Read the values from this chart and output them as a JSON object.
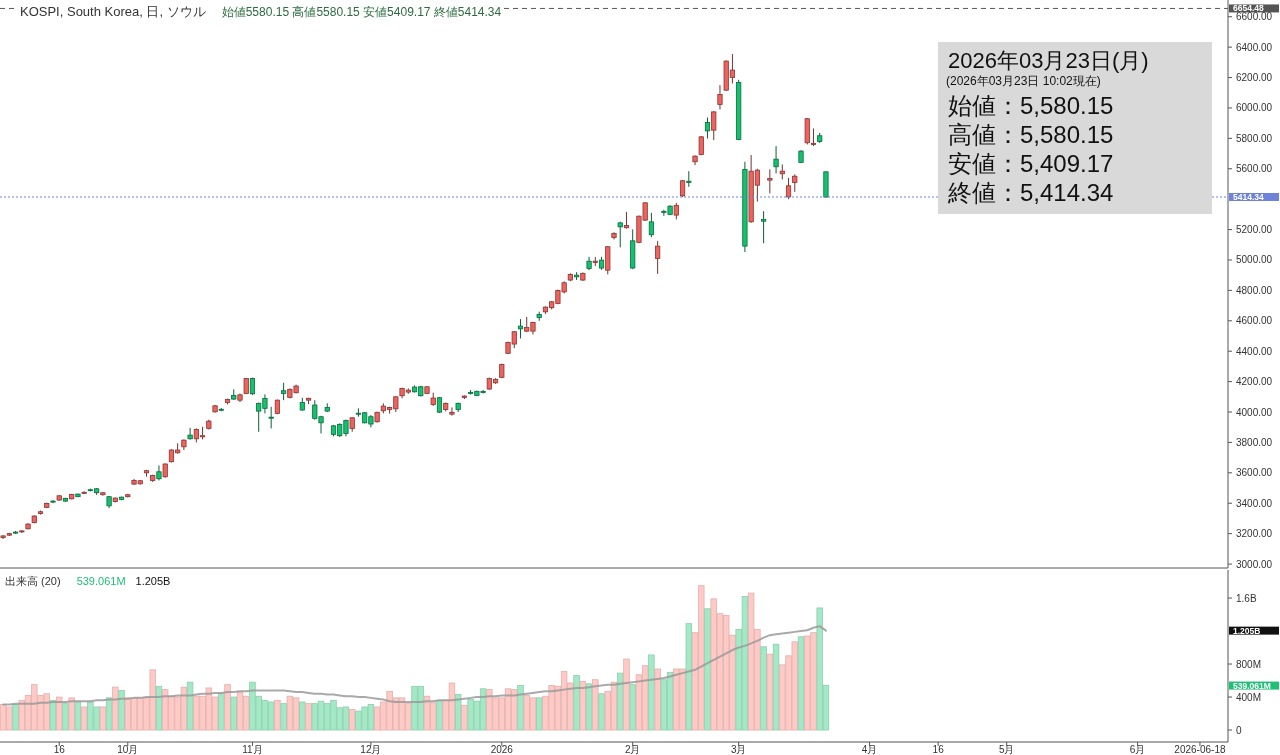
{
  "chart_data": [
    {
      "type": "candlestick",
      "title": "KOSPI, South Korea, 日, ソウル",
      "subtitle": "始値5580.15 高値5580.15 安値5409.17 終値5414.34",
      "tick_labels": "y",
      "categories": [
        null,
        null,
        null,
        null,
        null,
        null,
        null,
        null,
        null,
        null,
        null,
        null,
        null,
        null,
        null,
        null,
        null,
        null,
        null,
        null,
        null,
        null,
        null,
        null,
        null,
        null,
        null,
        null,
        null,
        null,
        null,
        null,
        null,
        null,
        null,
        null,
        null,
        null,
        null,
        null,
        null,
        null,
        null,
        null,
        null,
        null,
        null,
        null,
        null,
        null,
        null,
        null,
        null,
        null,
        null,
        null,
        null,
        null,
        null,
        null,
        null,
        null,
        null,
        null,
        null,
        null,
        null,
        null,
        null,
        null,
        null,
        null,
        null,
        null,
        null,
        null,
        null,
        null,
        null,
        null,
        null,
        null,
        null,
        null,
        null,
        null,
        null,
        null,
        null,
        null,
        null,
        null,
        null,
        null,
        null,
        null,
        null,
        null,
        null,
        null,
        null,
        null,
        null,
        null,
        null,
        null,
        null,
        null,
        null,
        null,
        null,
        null,
        null,
        null,
        null,
        null,
        null,
        null,
        null,
        null,
        null,
        null,
        null,
        null,
        null,
        null,
        null,
        null,
        null,
        null,
        null,
        null,
        null,
        null,
        null,
        null,
        null,
        null,
        null,
        null,
        null,
        null,
        null,
        null,
        null,
        null,
        null,
        null,
        null,
        null,
        null,
        null,
        null,
        null,
        null,
        null,
        null,
        null,
        null,
        null,
        null,
        null,
        null,
        null,
        null,
        null,
        null,
        null,
        null,
        null,
        null,
        null,
        null,
        null,
        null,
        null,
        null,
        null,
        null,
        null,
        null,
        null,
        null,
        null,
        null,
        null,
        null,
        null,
        null,
        null,
        null,
        null,
        null,
        null,
        null,
        null,
        null
      ],
      "ohlc": [
        [
          3175,
          3190,
          3165,
          3185
        ],
        [
          3190,
          3205,
          3185,
          3200
        ],
        [
          3210,
          3218,
          3198,
          3206
        ],
        [
          3212,
          3222,
          3205,
          3218
        ],
        [
          3232,
          3268,
          3228,
          3263
        ],
        [
          3272,
          3320,
          3268,
          3316
        ],
        [
          3333,
          3352,
          3325,
          3344
        ],
        [
          3373,
          3404,
          3368,
          3399
        ],
        [
          3414,
          3420,
          3400,
          3408
        ],
        [
          3421,
          3453,
          3416,
          3449
        ],
        [
          3432,
          3436,
          3410,
          3414
        ],
        [
          3429,
          3462,
          3425,
          3458
        ],
        [
          3460,
          3464,
          3440,
          3443
        ],
        [
          3465,
          3478,
          3460,
          3472
        ],
        [
          3489,
          3496,
          3478,
          3485
        ],
        [
          3495,
          3500,
          3455,
          3469
        ],
        [
          3456,
          3474,
          3450,
          3469
        ],
        [
          3443,
          3448,
          3368,
          3383
        ],
        [
          3412,
          3438,
          3405,
          3434
        ],
        [
          3440,
          3444,
          3420,
          3425
        ],
        [
          3443,
          3462,
          3438,
          3456
        ],
        [
          3526,
          3560,
          3520,
          3550
        ],
        [
          3528,
          3553,
          3522,
          3548
        ],
        [
          3600,
          3620,
          3575,
          3614
        ],
        [
          3550,
          3588,
          3540,
          3583
        ],
        [
          3607,
          3649,
          3550,
          3561
        ],
        [
          3574,
          3662,
          3568,
          3658
        ],
        [
          3673,
          3755,
          3668,
          3750
        ],
        [
          3732,
          3794,
          3726,
          3750
        ],
        [
          3771,
          3820,
          3750,
          3815
        ],
        [
          3848,
          3896,
          3818,
          3824
        ],
        [
          3824,
          3892,
          3800,
          3886
        ],
        [
          3837,
          3903,
          3820,
          3844
        ],
        [
          3892,
          3950,
          3885,
          3940
        ],
        [
          4001,
          4046,
          3996,
          4041
        ],
        [
          4018,
          4026,
          4005,
          4013
        ],
        [
          4063,
          4088,
          4050,
          4083
        ],
        [
          4109,
          4149,
          4080,
          4085
        ],
        [
          4078,
          4121,
          4065,
          4113
        ],
        [
          4122,
          4224,
          4118,
          4221
        ],
        [
          4221,
          4226,
          4112,
          4120
        ],
        [
          4057,
          4062,
          3870,
          4006
        ],
        [
          4090,
          4116,
          3991,
          4024
        ],
        [
          3966,
          4034,
          3892,
          3960
        ],
        [
          3991,
          4082,
          3985,
          4078
        ],
        [
          4140,
          4192,
          4078,
          4122
        ],
        [
          4096,
          4155,
          4090,
          4149
        ],
        [
          4127,
          4180,
          4122,
          4171
        ],
        [
          4063,
          4094,
          4008,
          4013
        ],
        [
          4078,
          4094,
          4052,
          4090
        ],
        [
          4046,
          4078,
          3950,
          3958
        ],
        [
          3969,
          3975,
          3859,
          3929
        ],
        [
          4030,
          4057,
          4000,
          4006
        ],
        [
          3909,
          3915,
          3840,
          3853
        ],
        [
          3919,
          3925,
          3835,
          3844
        ],
        [
          3945,
          3950,
          3840,
          3859
        ],
        [
          3892,
          3966,
          3870,
          3962
        ],
        [
          3992,
          4024,
          3969,
          3987
        ],
        [
          3995,
          4000,
          3925,
          3929
        ],
        [
          3969,
          3980,
          3899,
          3921
        ],
        [
          3936,
          4002,
          3930,
          3998
        ],
        [
          4008,
          4057,
          3991,
          4039
        ],
        [
          4017,
          4035,
          3990,
          4030
        ],
        [
          4021,
          4104,
          4000,
          4100
        ],
        [
          4107,
          4160,
          4090,
          4155
        ],
        [
          4131,
          4155,
          4120,
          4144
        ],
        [
          4164,
          4175,
          4128,
          4133
        ],
        [
          4166,
          4172,
          4102,
          4107
        ],
        [
          4122,
          4170,
          4118,
          4166
        ],
        [
          4050,
          4127,
          4040,
          4092
        ],
        [
          4094,
          4099,
          3994,
          3999
        ],
        [
          4017,
          4062,
          4004,
          4057
        ],
        [
          3986,
          4030,
          3976,
          3998
        ],
        [
          4057,
          4062,
          4000,
          4017
        ],
        [
          4096,
          4110,
          4085,
          4105
        ],
        [
          4129,
          4145,
          4115,
          4125
        ],
        [
          4136,
          4141,
          4104,
          4109
        ],
        [
          4135,
          4145,
          4122,
          4131
        ],
        [
          4151,
          4226,
          4146,
          4221
        ],
        [
          4192,
          4222,
          4185,
          4215
        ],
        [
          4228,
          4318,
          4223,
          4313
        ],
        [
          4386,
          4463,
          4381,
          4458
        ],
        [
          4447,
          4532,
          4420,
          4528
        ],
        [
          4565,
          4611,
          4484,
          4547
        ],
        [
          4532,
          4626,
          4525,
          4556
        ],
        [
          4532,
          4594,
          4510,
          4589
        ],
        [
          4642,
          4660,
          4600,
          4622
        ],
        [
          4659,
          4695,
          4645,
          4690
        ],
        [
          4686,
          4730,
          4675,
          4725
        ],
        [
          4714,
          4805,
          4709,
          4800
        ],
        [
          4790,
          4860,
          4780,
          4850
        ],
        [
          4868,
          4912,
          4860,
          4905
        ],
        [
          4900,
          4920,
          4868,
          4889
        ],
        [
          4868,
          4918,
          4862,
          4912
        ],
        [
          4992,
          5021,
          4933,
          4944
        ],
        [
          4984,
          5020,
          4960,
          4992
        ],
        [
          4999,
          5021,
          4935,
          4947
        ],
        [
          4933,
          5092,
          4905,
          5087
        ],
        [
          5148,
          5182,
          5135,
          5175
        ],
        [
          5244,
          5252,
          5083,
          5218
        ],
        [
          5212,
          5316,
          5206,
          5227
        ],
        [
          5126,
          5201,
          4940,
          4947
        ],
        [
          5116,
          5292,
          5110,
          5288
        ],
        [
          5262,
          5380,
          5256,
          5376
        ],
        [
          5251,
          5310,
          5150,
          5166
        ],
        [
          5010,
          5124,
          4909,
          5091
        ],
        [
          5320,
          5330,
          5290,
          5313
        ],
        [
          5354,
          5360,
          5295,
          5300
        ],
        [
          5295,
          5376,
          5267,
          5359
        ],
        [
          5422,
          5526,
          5415,
          5521
        ],
        [
          5518,
          5584,
          5481,
          5510
        ],
        [
          5646,
          5688,
          5624,
          5683
        ],
        [
          5694,
          5815,
          5688,
          5810
        ],
        [
          5905,
          5937,
          5799,
          5849
        ],
        [
          5854,
          5979,
          5788,
          5974
        ],
        [
          6023,
          6150,
          5990,
          6089
        ],
        [
          6117,
          6313,
          6112,
          6308
        ],
        [
          6201,
          6354,
          6161,
          6249
        ],
        [
          6168,
          6185,
          5788,
          5793
        ],
        [
          5596,
          5646,
          5052,
          5091
        ],
        [
          5251,
          5690,
          5245,
          5584
        ],
        [
          5492,
          5600,
          5384,
          5591
        ],
        [
          5266,
          5321,
          5110,
          5255
        ],
        [
          5525,
          5596,
          5438,
          5536
        ],
        [
          5663,
          5749,
          5569,
          5613
        ],
        [
          5567,
          5628,
          5530,
          5584
        ],
        [
          5415,
          5540,
          5400,
          5488
        ],
        [
          5510,
          5563,
          5448,
          5551
        ],
        [
          5716,
          5722,
          5637,
          5642
        ],
        [
          5771,
          5934,
          5760,
          5929
        ],
        [
          5760,
          5865,
          5749,
          5767
        ],
        [
          5817,
          5836,
          5770,
          5780
        ],
        [
          5580.15,
          5580.15,
          5409.17,
          5414.34
        ],
        null,
        null,
        null,
        null,
        null,
        null,
        null,
        null,
        null,
        null,
        null,
        null,
        null,
        null,
        null,
        null,
        null,
        null,
        null,
        null,
        null,
        null,
        null,
        null,
        null,
        null,
        null,
        null,
        null,
        null,
        null,
        null,
        null,
        null,
        null,
        null,
        null,
        null,
        null,
        null,
        null,
        null,
        null,
        null,
        null,
        null,
        null,
        null,
        null,
        null,
        null,
        null,
        null,
        null,
        null,
        null,
        null,
        null,
        null,
        null,
        null,
        null,
        null,
        null
      ],
      "colors": [
        "#f0625d",
        "#f0625d",
        "#12c26e",
        "#f0625d",
        "#f0625d",
        "#f0625d",
        "#f0625d",
        "#f0625d",
        "#12c26e",
        "#f0625d",
        "#12c26e",
        "#f0625d",
        "#12c26e",
        "#f0625d",
        "#12c26e",
        "#12c26e",
        "#f0625d",
        "#12c26e",
        "#f0625d",
        "#12c26e",
        "#f0625d",
        "#f0625d",
        "#f0625d",
        "#f0625d",
        "#f0625d",
        "#12c26e",
        "#f0625d",
        "#f0625d",
        "#f0625d",
        "#f0625d",
        "#12c26e",
        "#f0625d",
        "#f0625d",
        "#f0625d",
        "#f0625d",
        "#12c26e",
        "#f0625d",
        "#12c26e",
        "#f0625d",
        "#f0625d",
        "#12c26e",
        "#12c26e",
        "#12c26e",
        "#12c26e",
        "#f0625d",
        "#12c26e",
        "#f0625d",
        "#f0625d",
        "#12c26e",
        "#f0625d",
        "#12c26e",
        "#12c26e",
        "#12c26e",
        "#12c26e",
        "#12c26e",
        "#12c26e",
        "#f0625d",
        "#12c26e",
        "#12c26e",
        "#12c26e",
        "#f0625d",
        "#f0625d",
        "#f0625d",
        "#f0625d",
        "#f0625d",
        "#f0625d",
        "#12c26e",
        "#12c26e",
        "#f0625d",
        "#f0625d",
        "#12c26e",
        "#f0625d",
        "#f0625d",
        "#12c26e",
        "#f0625d",
        "#12c26e",
        "#12c26e",
        "#12c26e",
        "#f0625d",
        "#f0625d",
        "#f0625d",
        "#f0625d",
        "#f0625d",
        "#12c26e",
        "#f0625d",
        "#f0625d",
        "#12c26e",
        "#f0625d",
        "#f0625d",
        "#f0625d",
        "#f0625d",
        "#f0625d",
        "#12c26e",
        "#f0625d",
        "#12c26e",
        "#f0625d",
        "#12c26e",
        "#f0625d",
        "#f0625d",
        "#12c26e",
        "#f0625d",
        "#12c26e",
        "#f0625d",
        "#f0625d",
        "#12c26e",
        "#f0625d",
        "#12c26e",
        "#12c26e",
        "#f0625d",
        "#f0625d",
        "#12c26e",
        "#f0625d",
        "#f0625d",
        "#12c26e",
        "#f0625d",
        "#f0625d",
        "#f0625d",
        "#f0625d",
        "#12c26e",
        "#12c26e",
        "#f0625d",
        "#f0625d",
        "#12c26e",
        "#f0625d",
        "#12c26e",
        "#f0625d",
        "#f0625d",
        "#f0625d",
        "#12c26e",
        "#f0625d",
        "#f0625d",
        "#12c26e",
        "#12c26e",
        null,
        null,
        null,
        null,
        null,
        null,
        null,
        null,
        null,
        null,
        null,
        null,
        null,
        null,
        null,
        null,
        null,
        null,
        null,
        null,
        null,
        null,
        null,
        null,
        null,
        null,
        null,
        null,
        null,
        null,
        null,
        null,
        null,
        null,
        null,
        null,
        null,
        null,
        null,
        null,
        null,
        null,
        null,
        null,
        null,
        null,
        null,
        null,
        null,
        null,
        null,
        null,
        null,
        null,
        null,
        null,
        null,
        null,
        null,
        null,
        null,
        null,
        null,
        null
      ],
      "ylim": [
        2974,
        6710
      ],
      "yticks": [
        {
          "value": 3000,
          "label": "3000.00"
        },
        {
          "value": 3200,
          "label": "3200.00"
        },
        {
          "value": 3400,
          "label": "3400.00"
        },
        {
          "value": 3600,
          "label": "3600.00"
        },
        {
          "value": 3800,
          "label": "3800.00"
        },
        {
          "value": 4000,
          "label": "4000.00"
        },
        {
          "value": 4200,
          "label": "4200.00"
        },
        {
          "value": 4400,
          "label": "4400.00"
        },
        {
          "value": 4600,
          "label": "4600.00"
        },
        {
          "value": 4800,
          "label": "4800.00"
        },
        {
          "value": 5000,
          "label": "5000.00"
        },
        {
          "value": 5200,
          "label": "5200.00"
        },
        {
          "value": 5600,
          "label": "5600.00"
        },
        {
          "value": 5800,
          "label": "5800.00"
        },
        {
          "value": 6000,
          "label": "6000.00"
        },
        {
          "value": 6200,
          "label": "6200.00"
        },
        {
          "value": 6400,
          "label": "6400.00"
        },
        {
          "value": 6600,
          "label": "6600.00"
        }
      ],
      "ref_lines": [
        {
          "axis": "y",
          "value": 5414.34,
          "label": "5414.34",
          "color": "#6f82d8",
          "line_style": "dotted"
        },
        {
          "axis": "y",
          "value": 6654.48,
          "label": "6654.48",
          "color": "#555555",
          "line_style": "dashed"
        }
      ],
      "annotations": [
        "2026年03月23日(月)",
        "(2026年03月23日 10:02現在)",
        "始値：5,580.15",
        "高値：5,580.15",
        "安値：5,409.17",
        "終値：5,414.34"
      ]
    },
    {
      "type": "bar",
      "title": "出来高 (20)",
      "categories": [
        null,
        null,
        null,
        null,
        null,
        null,
        null,
        null,
        null,
        "16",
        null,
        null,
        null,
        null,
        null,
        null,
        null,
        null,
        null,
        null,
        "10月",
        null,
        null,
        null,
        null,
        null,
        null,
        null,
        null,
        null,
        null,
        null,
        null,
        null,
        null,
        null,
        null,
        null,
        null,
        null,
        "11月",
        null,
        null,
        null,
        null,
        null,
        null,
        null,
        null,
        null,
        null,
        null,
        null,
        null,
        null,
        null,
        null,
        null,
        null,
        "12月",
        null,
        null,
        null,
        null,
        null,
        null,
        null,
        null,
        null,
        null,
        null,
        null,
        null,
        null,
        null,
        null,
        null,
        null,
        null,
        null,
        "2026",
        null,
        null,
        null,
        null,
        null,
        null,
        null,
        null,
        null,
        null,
        null,
        null,
        null,
        null,
        null,
        null,
        null,
        null,
        null,
        null,
        "2月",
        null,
        null,
        null,
        null,
        null,
        null,
        null,
        null,
        null,
        null,
        null,
        null,
        null,
        null,
        null,
        null,
        "3月",
        null,
        null,
        null,
        null,
        null,
        null,
        null,
        null,
        null,
        null,
        null,
        null,
        null,
        null,
        null,
        null,
        null,
        null,
        null,
        null,
        "4月",
        null,
        null,
        null,
        null,
        null,
        null,
        null,
        null,
        null,
        null,
        "16",
        null,
        null,
        null,
        null,
        null,
        null,
        null,
        null,
        null,
        null,
        "5月",
        null,
        null,
        null,
        null,
        null,
        null,
        null,
        null,
        null,
        null,
        null,
        null,
        null,
        null,
        null,
        null,
        null,
        null,
        null,
        null,
        "6月",
        null,
        null,
        null,
        null,
        null,
        null,
        null,
        null,
        null,
        "2026-06-18",
        null,
        null,
        null,
        null
      ],
      "series": [
        {
          "values": [
            310000000.0,
            280000000.0,
            310000000.0,
            360000000.0,
            420000000.0,
            550000000.0,
            420000000.0,
            440000000.0,
            360000000.0,
            400000000.0,
            320000000.0,
            390000000.0,
            340000000.0,
            280000000.0,
            340000000.0,
            280000000.0,
            280000000.0,
            390000000.0,
            520000000.0,
            480000000.0,
            390000000.0,
            390000000.0,
            390000000.0,
            390000000.0,
            730000000.0,
            530000000.0,
            490000000.0,
            410000000.0,
            400000000.0,
            520000000.0,
            580000000.0,
            410000000.0,
            410000000.0,
            510000000.0,
            400000000.0,
            440000000.0,
            550000000.0,
            400000000.0,
            460000000.0,
            410000000.0,
            580000000.0,
            410000000.0,
            360000000.0,
            340000000.0,
            360000000.0,
            320000000.0,
            410000000.0,
            390000000.0,
            340000000.0,
            320000000.0,
            320000000.0,
            350000000.0,
            320000000.0,
            360000000.0,
            270000000.0,
            280000000.0,
            250000000.0,
            230000000.0,
            280000000.0,
            310000000.0,
            280000000.0,
            340000000.0,
            470000000.0,
            390000000.0,
            390000000.0,
            320000000.0,
            530000000.0,
            530000000.0,
            410000000.0,
            330000000.0,
            360000000.0,
            360000000.0,
            570000000.0,
            430000000.0,
            300000000.0,
            370000000.0,
            350000000.0,
            500000000.0,
            490000000.0,
            390000000.0,
            390000000.0,
            500000000.0,
            490000000.0,
            540000000.0,
            420000000.0,
            390000000.0,
            390000000.0,
            410000000.0,
            540000000.0,
            530000000.0,
            710000000.0,
            570000000.0,
            660000000.0,
            590000000.0,
            560000000.0,
            610000000.0,
            440000000.0,
            470000000.0,
            580000000.0,
            690000000.0,
            860000000.0,
            550000000.0,
            670000000.0,
            780000000.0,
            910000000.0,
            740000000.0,
            610000000.0,
            700000000.0,
            740000000.0,
            740000000.0,
            1290000000.0,
            1180000000.0,
            1750000000.0,
            1470000000.0,
            1590000000.0,
            1410000000.0,
            1390000000.0,
            1150000000.0,
            1220000000.0,
            1620000000.0,
            1660000000.0,
            1220000000.0,
            1010000000.0,
            920000000.0,
            1040000000.0,
            790000000.0,
            900000000.0,
            1070000000.0,
            1130000000.0,
            1140000000.0,
            1180000000.0,
            1480000000.0,
            539061000,
            null,
            null,
            null,
            null,
            null,
            null,
            null,
            null,
            null,
            null,
            null,
            null,
            null,
            null,
            null,
            null,
            null,
            null,
            null,
            null,
            null,
            null,
            null,
            null,
            null,
            null,
            null,
            null,
            null,
            null,
            null,
            null,
            null,
            null,
            null,
            null,
            null,
            null,
            null,
            null,
            null,
            null,
            null,
            null,
            null,
            null,
            null,
            null,
            null,
            null,
            null,
            null,
            null,
            null,
            null,
            null,
            null,
            null,
            null,
            null,
            null,
            null,
            null,
            null
          ],
          "colors": [
            "#ffc9c5",
            "#ffc9c5",
            "#a3e9c6",
            "#ffc9c5",
            "#ffc9c5",
            "#ffc9c5",
            "#ffc9c5",
            "#ffc9c5",
            "#a3e9c6",
            "#ffc9c5",
            "#a3e9c6",
            "#ffc9c5",
            "#a3e9c6",
            "#ffc9c5",
            "#a3e9c6",
            "#a3e9c6",
            "#ffc9c5",
            "#a3e9c6",
            "#ffc9c5",
            "#a3e9c6",
            "#ffc9c5",
            "#ffc9c5",
            "#ffc9c5",
            "#ffc9c5",
            "#ffc9c5",
            "#a3e9c6",
            "#ffc9c5",
            "#ffc9c5",
            "#ffc9c5",
            "#ffc9c5",
            "#a3e9c6",
            "#ffc9c5",
            "#ffc9c5",
            "#ffc9c5",
            "#ffc9c5",
            "#a3e9c6",
            "#ffc9c5",
            "#a3e9c6",
            "#ffc9c5",
            "#ffc9c5",
            "#a3e9c6",
            "#a3e9c6",
            "#a3e9c6",
            "#a3e9c6",
            "#ffc9c5",
            "#a3e9c6",
            "#ffc9c5",
            "#ffc9c5",
            "#a3e9c6",
            "#ffc9c5",
            "#a3e9c6",
            "#a3e9c6",
            "#a3e9c6",
            "#a3e9c6",
            "#a3e9c6",
            "#a3e9c6",
            "#ffc9c5",
            "#a3e9c6",
            "#a3e9c6",
            "#a3e9c6",
            "#ffc9c5",
            "#ffc9c5",
            "#ffc9c5",
            "#ffc9c5",
            "#ffc9c5",
            "#ffc9c5",
            "#a3e9c6",
            "#a3e9c6",
            "#ffc9c5",
            "#ffc9c5",
            "#a3e9c6",
            "#ffc9c5",
            "#ffc9c5",
            "#a3e9c6",
            "#ffc9c5",
            "#a3e9c6",
            "#a3e9c6",
            "#a3e9c6",
            "#ffc9c5",
            "#ffc9c5",
            "#ffc9c5",
            "#ffc9c5",
            "#ffc9c5",
            "#a3e9c6",
            "#ffc9c5",
            "#ffc9c5",
            "#a3e9c6",
            "#ffc9c5",
            "#ffc9c5",
            "#ffc9c5",
            "#ffc9c5",
            "#ffc9c5",
            "#a3e9c6",
            "#ffc9c5",
            "#a3e9c6",
            "#ffc9c5",
            "#a3e9c6",
            "#ffc9c5",
            "#ffc9c5",
            "#a3e9c6",
            "#ffc9c5",
            "#a3e9c6",
            "#ffc9c5",
            "#ffc9c5",
            "#a3e9c6",
            "#ffc9c5",
            "#a3e9c6",
            "#a3e9c6",
            "#ffc9c5",
            "#ffc9c5",
            "#a3e9c6",
            "#ffc9c5",
            "#ffc9c5",
            "#a3e9c6",
            "#ffc9c5",
            "#ffc9c5",
            "#ffc9c5",
            "#ffc9c5",
            "#a3e9c6",
            "#a3e9c6",
            "#ffc9c5",
            "#ffc9c5",
            "#a3e9c6",
            "#ffc9c5",
            "#a3e9c6",
            "#ffc9c5",
            "#ffc9c5",
            "#ffc9c5",
            "#a3e9c6",
            "#ffc9c5",
            "#ffc9c5",
            "#a3e9c6",
            "#a3e9c6",
            null,
            null,
            null,
            null,
            null,
            null,
            null,
            null,
            null,
            null,
            null,
            null,
            null,
            null,
            null,
            null,
            null,
            null,
            null,
            null,
            null,
            null,
            null,
            null,
            null,
            null,
            null,
            null,
            null,
            null,
            null,
            null,
            null,
            null,
            null,
            null,
            null,
            null,
            null,
            null,
            null,
            null,
            null,
            null,
            null,
            null,
            null,
            null,
            null,
            null,
            null,
            null,
            null,
            null,
            null,
            null,
            null,
            null,
            null,
            null,
            null,
            null,
            null,
            null
          ]
        },
        {
          "type": "line",
          "color": "#9a9a9a",
          "values": [
            310000000.0,
            310000000.0,
            320000000.0,
            320000000.0,
            320000000.0,
            320000000.0,
            330000000.0,
            330000000.0,
            340000000.0,
            340000000.0,
            340000000.0,
            350000000.0,
            350000000.0,
            350000000.0,
            350000000.0,
            360000000.0,
            360000000.0,
            370000000.0,
            370000000.0,
            380000000.0,
            380000000.0,
            390000000.0,
            390000000.0,
            400000000.0,
            400000000.0,
            400000000.0,
            410000000.0,
            410000000.0,
            420000000.0,
            420000000.0,
            420000000.0,
            430000000.0,
            440000000.0,
            440000000.0,
            450000000.0,
            450000000.0,
            460000000.0,
            460000000.0,
            470000000.0,
            470000000.0,
            480000000.0,
            480000000.0,
            480000000.0,
            480000000.0,
            480000000.0,
            480000000.0,
            470000000.0,
            460000000.0,
            460000000.0,
            450000000.0,
            440000000.0,
            440000000.0,
            430000000.0,
            430000000.0,
            420000000.0,
            410000000.0,
            410000000.0,
            400000000.0,
            400000000.0,
            390000000.0,
            380000000.0,
            370000000.0,
            350000000.0,
            340000000.0,
            340000000.0,
            340000000.0,
            340000000.0,
            340000000.0,
            350000000.0,
            350000000.0,
            360000000.0,
            360000000.0,
            360000000.0,
            370000000.0,
            380000000.0,
            390000000.0,
            400000000.0,
            400000000.0,
            410000000.0,
            410000000.0,
            420000000.0,
            420000000.0,
            420000000.0,
            430000000.0,
            440000000.0,
            450000000.0,
            460000000.0,
            470000000.0,
            470000000.0,
            480000000.0,
            490000000.0,
            500000000.0,
            510000000.0,
            510000000.0,
            520000000.0,
            530000000.0,
            540000000.0,
            550000000.0,
            550000000.0,
            560000000.0,
            570000000.0,
            580000000.0,
            590000000.0,
            600000000.0,
            610000000.0,
            620000000.0,
            630000000.0,
            650000000.0,
            670000000.0,
            690000000.0,
            710000000.0,
            730000000.0,
            770000000.0,
            810000000.0,
            850000000.0,
            890000000.0,
            930000000.0,
            970000000.0,
            1000000000.0,
            1020000000.0,
            1050000000.0,
            1080000000.0,
            1120000000.0,
            1150000000.0,
            1160000000.0,
            1170000000.0,
            1180000000.0,
            1190000000.0,
            1200000000.0,
            1210000000.0,
            1240000000.0,
            1260000000.0,
            1205000000.0,
            null,
            null,
            null,
            null,
            null,
            null,
            null,
            null,
            null,
            null,
            null,
            null,
            null,
            null,
            null,
            null,
            null,
            null,
            null,
            null,
            null,
            null,
            null,
            null,
            null,
            null,
            null,
            null,
            null,
            null,
            null,
            null,
            null,
            null,
            null,
            null,
            null,
            null,
            null,
            null,
            null,
            null,
            null,
            null,
            null,
            null,
            null,
            null,
            null,
            null,
            null,
            null,
            null,
            null,
            null,
            null,
            null,
            null,
            null,
            null,
            null,
            null,
            null,
            null
          ]
        }
      ],
      "ylim": [
        -145000000.0,
        1940000000.0
      ],
      "yticks": [
        {
          "value": 0,
          "label": "0"
        },
        {
          "value": 400000000.0,
          "label": "400M"
        },
        {
          "value": 800000000.0,
          "label": "800M"
        },
        {
          "value": 1600000000.0,
          "label": "1.6B"
        }
      ],
      "annotations": [
        "539.061M",
        "1.205B",
        "539.061M",
        "1.205B"
      ]
    }
  ]
}
